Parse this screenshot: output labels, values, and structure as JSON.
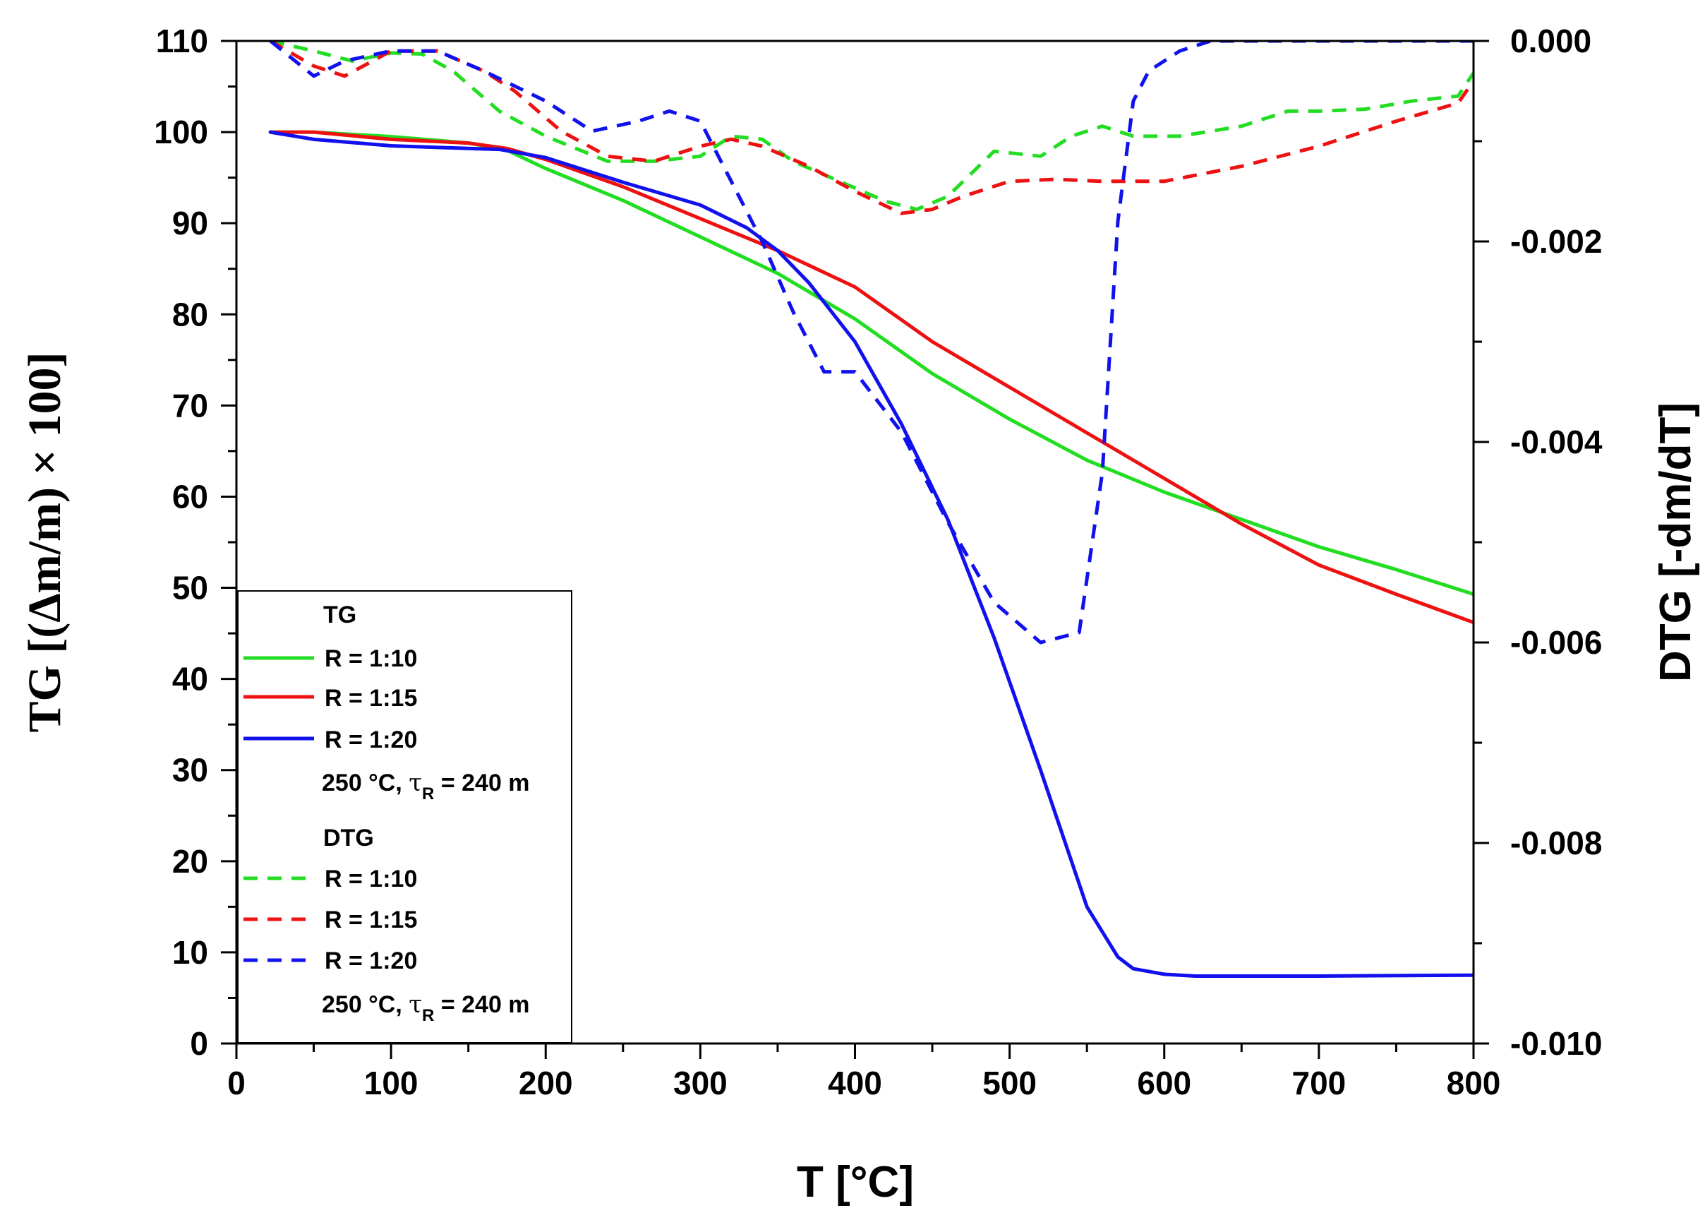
{
  "chart_data": {
    "type": "line",
    "title": "",
    "xlabel": "T [°C]",
    "ylabel_left": "TG [(Δm/m) × 100]",
    "ylabel_right": "DTG [-dm/dT]",
    "xlim": [
      0,
      800
    ],
    "ylim_left": [
      0,
      110
    ],
    "ylim_right": [
      -0.01,
      0.0
    ],
    "x_ticks": [
      "0",
      "100",
      "200",
      "300",
      "400",
      "500",
      "600",
      "700",
      "800"
    ],
    "y_left_ticks": [
      "0",
      "10",
      "20",
      "30",
      "40",
      "50",
      "60",
      "70",
      "80",
      "90",
      "100",
      "110"
    ],
    "y_right_ticks": [
      "0.000",
      "-0.002",
      "-0.004",
      "-0.006",
      "-0.008",
      "-0.010"
    ],
    "grid": false,
    "colors": {
      "green": "#22dd22",
      "red": "#ee1111",
      "blue": "#1111ee"
    },
    "series": [
      {
        "name": "TG R = 1:10",
        "axis": "left",
        "style": "solid",
        "color": "#22dd22",
        "x": [
          22,
          50,
          100,
          150,
          175,
          200,
          250,
          300,
          350,
          400,
          450,
          500,
          550,
          600,
          650,
          700,
          750,
          800
        ],
        "y": [
          100,
          100,
          99.5,
          98.8,
          98,
          96,
          92.5,
          88.5,
          84.5,
          79.5,
          73.5,
          68.5,
          64,
          60.5,
          57.5,
          54.5,
          52,
          49.3
        ]
      },
      {
        "name": "TG R = 1:15",
        "axis": "left",
        "style": "solid",
        "color": "#ee1111",
        "x": [
          22,
          50,
          100,
          150,
          175,
          200,
          250,
          300,
          350,
          400,
          450,
          500,
          550,
          600,
          650,
          700,
          750,
          800
        ],
        "y": [
          100,
          100,
          99.2,
          98.8,
          98.2,
          97,
          94,
          90.5,
          87,
          83,
          77,
          72,
          67,
          62,
          57,
          52.5,
          49.3,
          46.2
        ]
      },
      {
        "name": "TG R = 1:20",
        "axis": "left",
        "style": "solid",
        "color": "#1111ee",
        "x": [
          22,
          50,
          100,
          150,
          170,
          200,
          250,
          300,
          330,
          350,
          370,
          400,
          430,
          460,
          490,
          520,
          550,
          570,
          580,
          600,
          620,
          700,
          800
        ],
        "y": [
          100,
          99.2,
          98.5,
          98.2,
          98.1,
          97.2,
          94.5,
          92,
          89.5,
          87,
          83.5,
          77,
          68,
          57.5,
          44.5,
          30,
          15,
          9.5,
          8.2,
          7.6,
          7.4,
          7.4,
          7.5
        ]
      },
      {
        "name": "DTG R = 1:10",
        "axis": "right",
        "style": "dashed",
        "color": "#22dd22",
        "x": [
          22,
          50,
          75,
          100,
          120,
          140,
          170,
          200,
          240,
          270,
          300,
          320,
          340,
          360,
          390,
          420,
          440,
          460,
          490,
          520,
          540,
          560,
          580,
          610,
          650,
          680,
          700,
          730,
          760,
          790,
          800
        ],
        "y": [
          0.0,
          -0.0001,
          -0.0002,
          -0.00012,
          -0.00013,
          -0.0003,
          -0.0007,
          -0.00095,
          -0.0012,
          -0.0012,
          -0.00115,
          -0.00095,
          -0.00098,
          -0.0012,
          -0.0014,
          -0.0016,
          -0.00168,
          -0.00155,
          -0.0011,
          -0.00115,
          -0.00095,
          -0.00085,
          -0.00095,
          -0.00095,
          -0.00085,
          -0.0007,
          -0.0007,
          -0.00068,
          -0.0006,
          -0.00055,
          -0.00032
        ]
      },
      {
        "name": "DTG R = 1:15",
        "axis": "right",
        "style": "dashed",
        "color": "#ee1111",
        "x": [
          22,
          50,
          70,
          100,
          130,
          160,
          180,
          210,
          240,
          270,
          300,
          320,
          340,
          370,
          400,
          430,
          450,
          470,
          500,
          530,
          560,
          600,
          650,
          700,
          750,
          790,
          800
        ],
        "y": [
          0.0,
          -0.00025,
          -0.00035,
          -0.0001,
          -0.0001,
          -0.0003,
          -0.0005,
          -0.0009,
          -0.00115,
          -0.0012,
          -0.00105,
          -0.00098,
          -0.00105,
          -0.00125,
          -0.0015,
          -0.00172,
          -0.00168,
          -0.00155,
          -0.0014,
          -0.00138,
          -0.0014,
          -0.0014,
          -0.00125,
          -0.00105,
          -0.0008,
          -0.00062,
          -0.0004
        ]
      },
      {
        "name": "DTG R = 1:20",
        "axis": "right",
        "style": "dashed",
        "color": "#1111ee",
        "x": [
          22,
          50,
          70,
          100,
          130,
          160,
          200,
          230,
          260,
          280,
          300,
          320,
          340,
          360,
          380,
          400,
          430,
          460,
          490,
          520,
          545,
          560,
          570,
          580,
          590,
          610,
          630,
          700,
          800
        ],
        "y": [
          0.0,
          -0.00035,
          -0.0002,
          -0.0001,
          -0.0001,
          -0.0003,
          -0.0006,
          -0.0009,
          -0.0008,
          -0.0007,
          -0.0008,
          -0.0014,
          -0.002,
          -0.0027,
          -0.0033,
          -0.0033,
          -0.0039,
          -0.0048,
          -0.0056,
          -0.006,
          -0.0059,
          -0.0043,
          -0.0018,
          -0.0006,
          -0.0003,
          -0.0001,
          0.0,
          0.0,
          0.0
        ]
      }
    ],
    "legend": {
      "placement": "bottom-left",
      "tg_heading": "TG",
      "dtg_heading": "DTG",
      "entries": [
        "R = 1:10",
        "R = 1:15",
        "R = 1:20"
      ],
      "condition_prefix": "250 °C, ",
      "condition_tau": "τ",
      "condition_sub": "R",
      "condition_suffix": " = 240 m"
    }
  }
}
